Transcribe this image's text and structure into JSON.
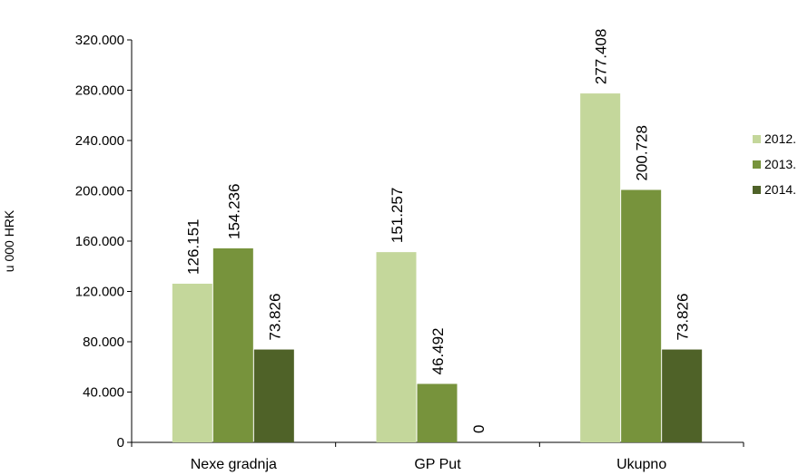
{
  "chart_data": {
    "type": "bar",
    "categories": [
      "Nexe gradnja",
      "GP Put",
      "Ukupno"
    ],
    "series": [
      {
        "name": "2012.",
        "color": "#c4d79b",
        "values": [
          126151,
          151257,
          277408
        ],
        "labels": [
          "126.151",
          "151.257",
          "277.408"
        ]
      },
      {
        "name": "2013.",
        "color": "#77933c",
        "values": [
          154236,
          46492,
          200728
        ],
        "labels": [
          "154.236",
          "46.492",
          "200.728"
        ]
      },
      {
        "name": "2014.",
        "color": "#4f6228",
        "values": [
          73826,
          0,
          73826
        ],
        "labels": [
          "73.826",
          "0",
          "73.826"
        ]
      }
    ],
    "ylabel": "u 000 HRK",
    "ylim": [
      0,
      320000
    ],
    "yticks": [
      0,
      40000,
      80000,
      120000,
      160000,
      200000,
      240000,
      280000,
      320000
    ],
    "ytick_labels": [
      "0",
      "40.000",
      "80.000",
      "120.000",
      "160.000",
      "200.000",
      "240.000",
      "280.000",
      "320.000"
    ],
    "grid": false,
    "legend_position": "right"
  }
}
